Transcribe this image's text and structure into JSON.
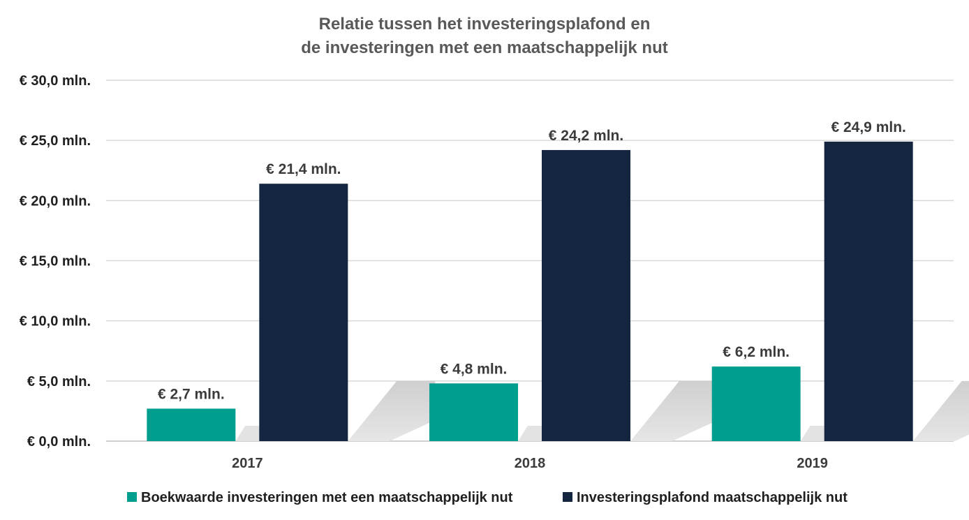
{
  "chart_data": {
    "type": "bar",
    "title_lines": [
      "Relatie tussen het investeringsplafond en",
      "de investeringen met een maatschappelijk nut"
    ],
    "categories": [
      "2017",
      "2018",
      "2019"
    ],
    "series": [
      {
        "name": "Boekwaarde investeringen met een maatschappelijk nut",
        "color": "#009e8e",
        "values": [
          2.7,
          4.8,
          6.2
        ],
        "labels": [
          "€ 2,7 mln.",
          "€ 4,8 mln.",
          "€ 6,2 mln."
        ]
      },
      {
        "name": "Investeringsplafond maatschappelijk nut",
        "color": "#13253f",
        "values": [
          21.4,
          24.2,
          24.9
        ],
        "labels": [
          "€ 21,4 mln.",
          "€ 24,2 mln.",
          "€ 24,9 mln."
        ]
      }
    ],
    "yticks": [
      0,
      5,
      10,
      15,
      20,
      25,
      30
    ],
    "ytick_labels": [
      "€ 0,0 mln.",
      "€ 5,0 mln.",
      "€ 10,0 mln.",
      "€ 15,0 mln.",
      "€ 20,0 mln.",
      "€ 25,0 mln.",
      "€ 30,0 mln."
    ],
    "ylim": [
      0,
      30
    ],
    "xlabel": "",
    "ylabel": "",
    "grid": true,
    "legend_position": "bottom"
  }
}
